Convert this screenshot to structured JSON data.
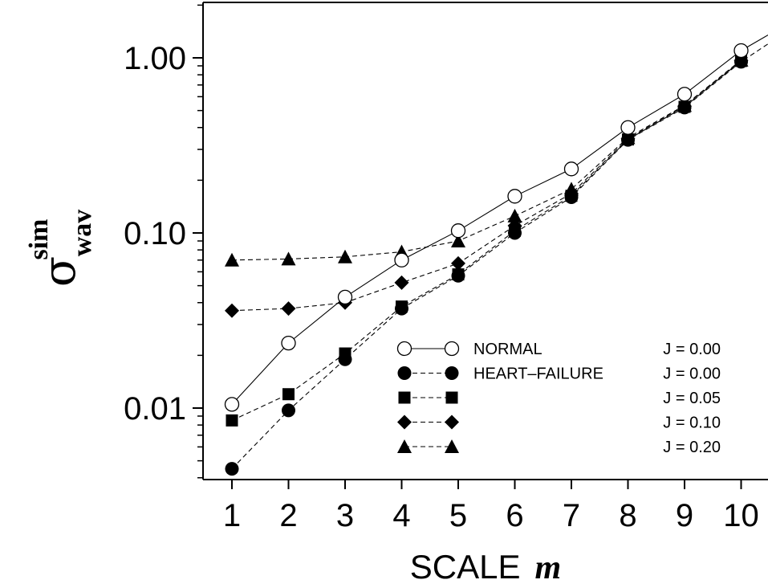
{
  "chart_data": {
    "type": "line",
    "x": [
      1,
      2,
      3,
      4,
      5,
      6,
      7,
      8,
      9,
      10
    ],
    "xlabel_text": "SCALE",
    "xlabel_var": "m",
    "ylabel_symbol": "σ",
    "ylabel_sub": "wav",
    "ylabel_sup": "sim",
    "yscale": "log",
    "ylim": [
      0.004,
      2.5
    ],
    "xlim": [
      0.5,
      10.5
    ],
    "ytick_values": [
      0.01,
      0.1,
      1.0
    ],
    "ytick_labels": [
      "0.01",
      "0.10",
      "1.00"
    ],
    "xtick_labels": [
      "1",
      "2",
      "3",
      "4",
      "5",
      "6",
      "7",
      "8",
      "9",
      "10"
    ],
    "grid": false,
    "legend_position": "lower-right",
    "series": [
      {
        "name": "NORMAL",
        "param": "J = 0.00",
        "marker": "open-circle",
        "line": "solid",
        "values": [
          0.0105,
          0.0235,
          0.043,
          0.07,
          0.103,
          0.162,
          0.232,
          0.4,
          0.62,
          1.1
        ],
        "extra_right": 1.35
      },
      {
        "name": "HEART–FAILURE",
        "param": "J = 0.00",
        "marker": "filled-circle",
        "line": "dashed",
        "values": [
          0.0045,
          0.0097,
          0.019,
          0.037,
          0.057,
          0.1,
          0.16,
          0.34,
          0.52,
          0.95
        ],
        "extra_right": 1.2
      },
      {
        "name": "",
        "param": "J = 0.05",
        "marker": "filled-square",
        "line": "dashed",
        "values": [
          0.0085,
          0.012,
          0.0205,
          0.038,
          0.058,
          0.103,
          0.163,
          0.342,
          0.525,
          0.96
        ]
      },
      {
        "name": "",
        "param": "J = 0.10",
        "marker": "filled-diamond",
        "line": "dashed",
        "values": [
          0.036,
          0.037,
          0.04,
          0.052,
          0.067,
          0.11,
          0.168,
          0.345,
          0.53,
          0.965
        ]
      },
      {
        "name": "",
        "param": "J = 0.20",
        "marker": "filled-triangle",
        "line": "dashed",
        "values": [
          0.07,
          0.071,
          0.073,
          0.078,
          0.09,
          0.125,
          0.178,
          0.35,
          0.535,
          0.97
        ]
      }
    ]
  }
}
